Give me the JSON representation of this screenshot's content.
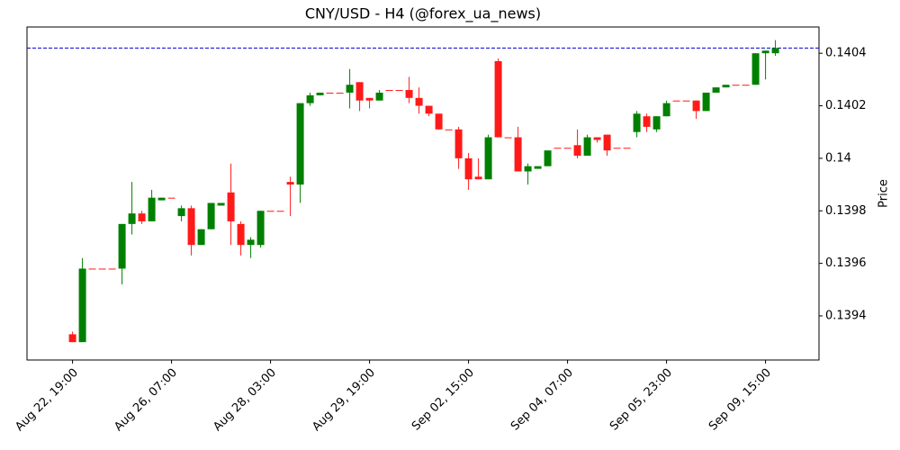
{
  "chart_data": {
    "type": "candlestick",
    "title": "CNY/USD - H4 (@forex_ua_news)",
    "y_label": "Price",
    "y_axis_side": "right",
    "up_color": "#008000",
    "down_color": "#ff1a1a",
    "categories": [
      "Aug 22, 19:00",
      null,
      null,
      null,
      null,
      null,
      null,
      null,
      null,
      null,
      "Aug 26, 07:00",
      null,
      null,
      null,
      null,
      null,
      null,
      null,
      null,
      null,
      "Aug 28, 03:00",
      null,
      null,
      null,
      null,
      null,
      null,
      null,
      null,
      null,
      "Aug 29, 19:00",
      null,
      null,
      null,
      null,
      null,
      null,
      null,
      null,
      null,
      "Sep 02, 15:00",
      null,
      null,
      null,
      null,
      null,
      null,
      null,
      null,
      null,
      "Sep 04, 07:00",
      null,
      null,
      null,
      null,
      null,
      null,
      null,
      null,
      null,
      "Sep 05, 23:00",
      null,
      null,
      null,
      null,
      null,
      null,
      null,
      null,
      null,
      "Sep 09, 15:00",
      null
    ],
    "open": [
      0.13933,
      0.1393,
      0.13958,
      0.13958,
      0.13958,
      0.13958,
      0.13975,
      0.13979,
      0.13976,
      0.13984,
      0.13985,
      0.13978,
      0.13981,
      0.13967,
      0.13973,
      0.13982,
      0.13987,
      0.13975,
      0.13967,
      0.13967,
      0.1398,
      0.1398,
      0.13991,
      0.1399,
      0.14021,
      0.14024,
      0.14025,
      0.14025,
      0.14025,
      0.14029,
      0.14023,
      0.14022,
      0.14026,
      0.14026,
      0.14026,
      0.14023,
      0.1402,
      0.14017,
      0.14011,
      0.14011,
      0.14,
      0.13993,
      0.13992,
      0.14037,
      0.14008,
      0.14008,
      0.13995,
      0.13996,
      0.13997,
      0.14004,
      0.14004,
      0.14005,
      0.14001,
      0.14008,
      0.14009,
      0.14004,
      0.14004,
      0.1401,
      0.14016,
      0.14011,
      0.14016,
      0.14022,
      0.14022,
      0.14022,
      0.14018,
      0.14025,
      0.14027,
      0.14028,
      0.14028,
      0.14028,
      0.1404,
      0.1404
    ],
    "high": [
      0.13934,
      0.13962,
      0.13958,
      0.13958,
      0.13958,
      0.13975,
      0.13991,
      0.1398,
      0.13988,
      0.13985,
      0.13985,
      0.13982,
      0.13982,
      0.13973,
      0.13983,
      0.13983,
      0.13998,
      0.13976,
      0.1397,
      0.1398,
      0.1398,
      0.1398,
      0.13993,
      0.14021,
      0.14025,
      0.14025,
      0.14025,
      0.14025,
      0.14034,
      0.14029,
      0.14023,
      0.14026,
      0.14026,
      0.14026,
      0.14031,
      0.14027,
      0.1402,
      0.14017,
      0.14011,
      0.14012,
      0.14002,
      0.14,
      0.14009,
      0.14038,
      0.14008,
      0.14012,
      0.13998,
      0.13997,
      0.14003,
      0.14004,
      0.14004,
      0.14011,
      0.14009,
      0.14008,
      0.14009,
      0.14004,
      0.14004,
      0.14018,
      0.14017,
      0.14016,
      0.14022,
      0.14022,
      0.14022,
      0.14022,
      0.14025,
      0.14027,
      0.14028,
      0.14028,
      0.14028,
      0.1404,
      0.14041,
      0.14045
    ],
    "low": [
      0.1393,
      0.1393,
      0.13958,
      0.13958,
      0.13958,
      0.13952,
      0.13971,
      0.13975,
      0.13976,
      0.13984,
      0.13985,
      0.13976,
      0.13963,
      0.13967,
      0.13973,
      0.13982,
      0.13967,
      0.13963,
      0.13962,
      0.13966,
      0.1398,
      0.1398,
      0.13978,
      0.13983,
      0.1402,
      0.14024,
      0.14025,
      0.14025,
      0.14019,
      0.14018,
      0.14019,
      0.14022,
      0.14026,
      0.14026,
      0.14021,
      0.14017,
      0.14016,
      0.14011,
      0.14011,
      0.13996,
      0.13988,
      0.13992,
      0.13992,
      0.14008,
      0.14008,
      0.13995,
      0.1399,
      0.13996,
      0.13997,
      0.14004,
      0.14004,
      0.14,
      0.14001,
      0.14006,
      0.14001,
      0.14004,
      0.14004,
      0.14008,
      0.1401,
      0.1401,
      0.14016,
      0.14022,
      0.14022,
      0.14015,
      0.14018,
      0.14025,
      0.14027,
      0.14028,
      0.14028,
      0.14028,
      0.1403,
      0.14039
    ],
    "close": [
      0.1393,
      0.13958,
      0.13958,
      0.13958,
      0.13958,
      0.13975,
      0.13979,
      0.13976,
      0.13985,
      0.13985,
      0.13985,
      0.13981,
      0.13967,
      0.13973,
      0.13983,
      0.13983,
      0.13976,
      0.13967,
      0.13969,
      0.1398,
      0.1398,
      0.1398,
      0.1399,
      0.14021,
      0.14024,
      0.14025,
      0.14025,
      0.14025,
      0.14028,
      0.14022,
      0.14022,
      0.14025,
      0.14026,
      0.14026,
      0.14023,
      0.1402,
      0.14017,
      0.14011,
      0.14011,
      0.14,
      0.13992,
      0.13992,
      0.14008,
      0.14008,
      0.14008,
      0.13995,
      0.13997,
      0.13997,
      0.14003,
      0.14004,
      0.14004,
      0.14001,
      0.14008,
      0.14007,
      0.14003,
      0.14004,
      0.14004,
      0.14017,
      0.14012,
      0.14016,
      0.14021,
      0.14022,
      0.14022,
      0.14018,
      0.14025,
      0.14027,
      0.14028,
      0.14028,
      0.14028,
      0.1404,
      0.14041,
      0.14042
    ],
    "hline": {
      "value": 0.14042,
      "color": "#0000cc"
    },
    "xlim": [
      -4.6,
      75.4
    ],
    "ylim": [
      0.139232,
      0.1405
    ],
    "yticks": [
      0.1394,
      0.1396,
      0.1398,
      0.14,
      0.1402,
      0.1404
    ]
  }
}
